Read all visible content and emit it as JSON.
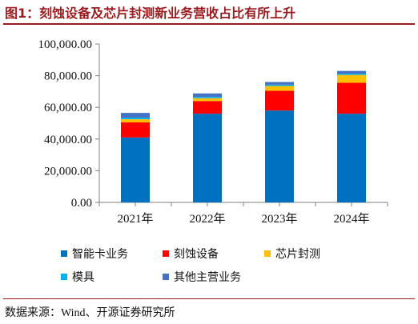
{
  "title": "图1：刻蚀设备及芯片封测新业务营收占比有所上升",
  "source": "数据来源：Wind、开源证券研究所",
  "colors": {
    "title": "#9b1b1f",
    "series": [
      "#0070c0",
      "#ff0000",
      "#ffc000",
      "#00b0f0",
      "#4472c4"
    ]
  },
  "chart_data": {
    "type": "bar",
    "stacked": true,
    "categories": [
      "2021年",
      "2022年",
      "2023年",
      "2024年"
    ],
    "series": [
      {
        "name": "智能卡业务",
        "values": [
          41000,
          56000,
          58000,
          56000
        ]
      },
      {
        "name": "刻蚀设备",
        "values": [
          9500,
          8000,
          12500,
          19500
        ]
      },
      {
        "name": "芯片封测",
        "values": [
          2000,
          1800,
          3000,
          5000
        ]
      },
      {
        "name": "模具",
        "values": [
          1000,
          800,
          800,
          800
        ]
      },
      {
        "name": "其他主营业务",
        "values": [
          3000,
          2200,
          1700,
          1700
        ]
      }
    ],
    "ylim": [
      0,
      100000
    ],
    "yticks": [
      "0.00",
      "20,000.00",
      "40,000.00",
      "60,000.00",
      "80,000.00",
      "100,000.00"
    ],
    "ytick_values": [
      0,
      20000,
      40000,
      60000,
      80000,
      100000
    ],
    "legend_position": "bottom",
    "grid": false
  }
}
